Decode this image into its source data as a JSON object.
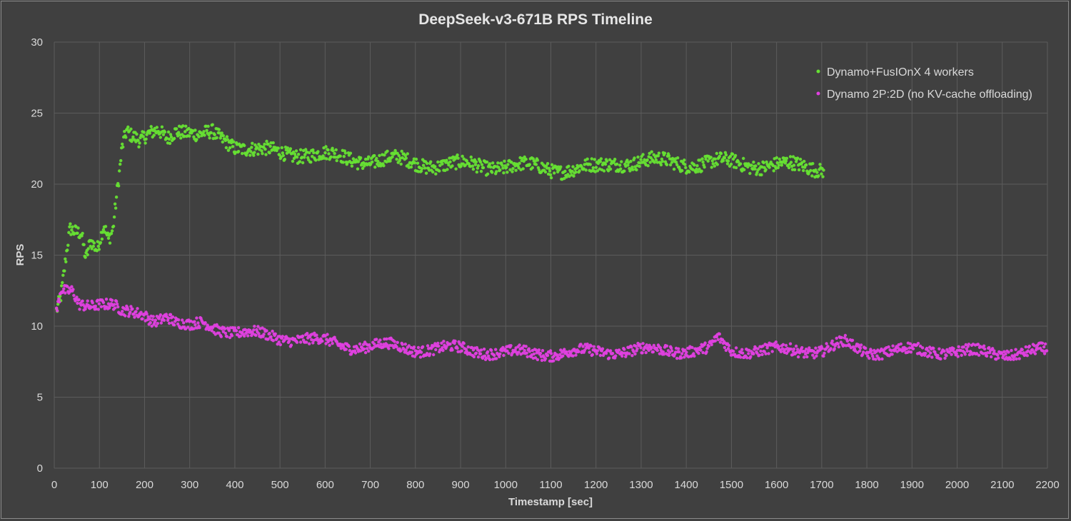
{
  "chart_data": {
    "type": "scatter",
    "title": "DeepSeek-v3-671B RPS Timeline",
    "xlabel": "Timestamp [sec]",
    "ylabel": "RPS",
    "xlim": [
      0,
      2200
    ],
    "ylim": [
      0,
      30
    ],
    "x_ticks": [
      0,
      100,
      200,
      300,
      400,
      500,
      600,
      700,
      800,
      900,
      1000,
      1100,
      1200,
      1300,
      1400,
      1500,
      1600,
      1700,
      1800,
      1900,
      2000,
      2100,
      2200
    ],
    "y_ticks": [
      0,
      5,
      10,
      15,
      20,
      25,
      30
    ],
    "grid": true,
    "legend_position": "top-right",
    "background": "#404040",
    "series": [
      {
        "name": "Dynamo+FusIOnX 4 workers",
        "color": "#66e033",
        "trend": [
          [
            5,
            11
          ],
          [
            15,
            12
          ],
          [
            30,
            15.6
          ],
          [
            35,
            16.6
          ],
          [
            45,
            16.4
          ],
          [
            60,
            16.4
          ],
          [
            70,
            14.7
          ],
          [
            80,
            16.1
          ],
          [
            95,
            15.6
          ],
          [
            110,
            17.4
          ],
          [
            120,
            16.3
          ],
          [
            130,
            17
          ],
          [
            138,
            19.2
          ],
          [
            145,
            21
          ],
          [
            150,
            22.5
          ],
          [
            160,
            23.6
          ],
          [
            170,
            23.2
          ],
          [
            190,
            22.8
          ],
          [
            210,
            23.5
          ],
          [
            230,
            24
          ],
          [
            250,
            23.5
          ],
          [
            270,
            23.9
          ],
          [
            290,
            23.6
          ],
          [
            320,
            23.2
          ],
          [
            350,
            23.6
          ],
          [
            380,
            23.2
          ],
          [
            400,
            22.8
          ],
          [
            450,
            22.3
          ],
          [
            500,
            22.2
          ],
          [
            550,
            22.2
          ],
          [
            600,
            22
          ],
          [
            650,
            21.8
          ],
          [
            700,
            21.7
          ],
          [
            750,
            21.7
          ],
          [
            800,
            21.5
          ],
          [
            900,
            21.3
          ],
          [
            1000,
            21.3
          ],
          [
            1100,
            21.1
          ],
          [
            1200,
            21.1
          ],
          [
            1250,
            21.6
          ],
          [
            1300,
            21.6
          ],
          [
            1400,
            21.5
          ],
          [
            1500,
            21.5
          ],
          [
            1600,
            21.3
          ],
          [
            1700,
            21.2
          ]
        ],
        "x_range": [
          5,
          1705
        ],
        "spread": 0.45
      },
      {
        "name": "Dynamo 2P:2D  (no KV-cache offloading)",
        "color": "#e040e0",
        "trend": [
          [
            5,
            10.8
          ],
          [
            15,
            12.4
          ],
          [
            25,
            12.3
          ],
          [
            40,
            12.4
          ],
          [
            55,
            11.6
          ],
          [
            80,
            11.6
          ],
          [
            100,
            11.7
          ],
          [
            130,
            11.5
          ],
          [
            150,
            10.9
          ],
          [
            200,
            10.8
          ],
          [
            220,
            10.5
          ],
          [
            250,
            10.8
          ],
          [
            270,
            10.2
          ],
          [
            300,
            9.9
          ],
          [
            330,
            10.2
          ],
          [
            360,
            9.9
          ],
          [
            400,
            9.6
          ],
          [
            450,
            9.4
          ],
          [
            500,
            9.2
          ],
          [
            550,
            9.1
          ],
          [
            600,
            8.9
          ],
          [
            650,
            8.6
          ],
          [
            700,
            8.6
          ],
          [
            750,
            8.6
          ],
          [
            800,
            8.4
          ],
          [
            900,
            8.4
          ],
          [
            1000,
            8.1
          ],
          [
            1100,
            8.1
          ],
          [
            1200,
            8.2
          ],
          [
            1300,
            8.3
          ],
          [
            1400,
            8.3
          ],
          [
            1450,
            8.3
          ],
          [
            1470,
            9.1
          ],
          [
            1500,
            8.3
          ],
          [
            1600,
            8.3
          ],
          [
            1700,
            8.3
          ],
          [
            1750,
            8.8
          ],
          [
            1780,
            8.4
          ],
          [
            1800,
            8.2
          ],
          [
            1900,
            8.3
          ],
          [
            2000,
            8.2
          ],
          [
            2100,
            8.1
          ],
          [
            2150,
            8.1
          ],
          [
            2200,
            8.3
          ]
        ],
        "x_range": [
          5,
          2200
        ],
        "spread": 0.35
      }
    ]
  }
}
